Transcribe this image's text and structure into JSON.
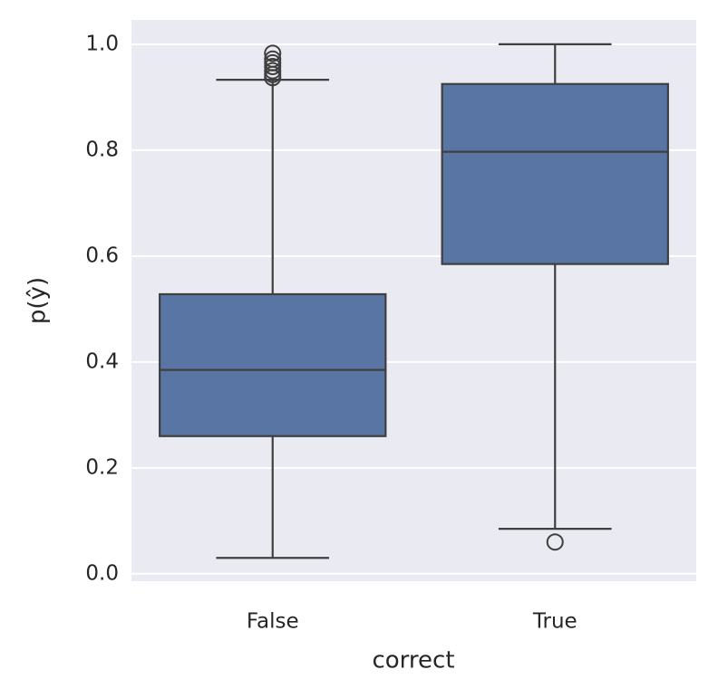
{
  "chart_data": {
    "type": "box",
    "xlabel": "correct",
    "ylabel": "p(ŷ)",
    "categories": [
      "False",
      "True"
    ],
    "color": "#5875a4",
    "boxes": [
      {
        "whislo": 0.03,
        "q1": 0.26,
        "med": 0.385,
        "q3": 0.528,
        "whishi": 0.933,
        "fliers": [
          0.983,
          0.972,
          0.965,
          0.958,
          0.95,
          0.943,
          0.937
        ]
      },
      {
        "whislo": 0.085,
        "q1": 0.585,
        "med": 0.797,
        "q3": 0.925,
        "whishi": 1.0,
        "fliers": [
          0.06
        ]
      }
    ],
    "ylim": [
      -0.014,
      1.046
    ],
    "yticks": [
      {
        "value": 0,
        "label": "0.0"
      },
      {
        "value": 0.2,
        "label": "0.2"
      },
      {
        "value": 0.4,
        "label": "0.4"
      },
      {
        "value": 0.6,
        "label": "0.6"
      },
      {
        "value": 0.8,
        "label": "0.8"
      },
      {
        "value": 1,
        "label": "1.0"
      }
    ],
    "grid": true
  }
}
